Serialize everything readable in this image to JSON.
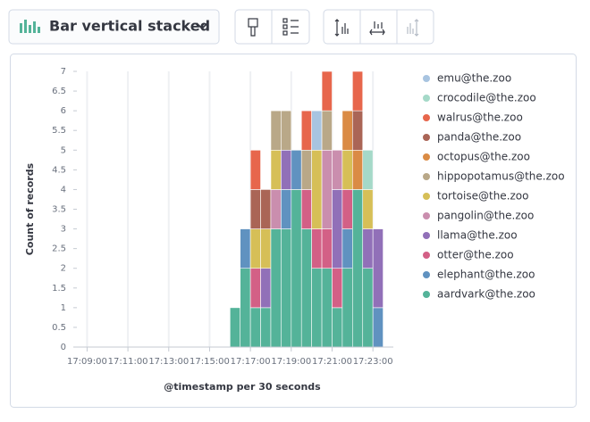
{
  "toolbar": {
    "chart_type": "Bar vertical stacked"
  },
  "chart_data": {
    "type": "bar",
    "stacked": true,
    "x_label": "@timestamp per 30 seconds",
    "y_label": "Count of records",
    "x": [
      "17:16:00",
      "17:16:30",
      "17:17:00",
      "17:17:30",
      "17:18:00",
      "17:18:30",
      "17:19:00",
      "17:19:30",
      "17:20:00",
      "17:20:30",
      "17:21:00",
      "17:21:30",
      "17:22:00",
      "17:22:30",
      "17:23:00"
    ],
    "bin": "00:00:30",
    "xlim": [
      "17:08:30",
      "17:24:00"
    ],
    "xticks": [
      "17:09:00",
      "17:11:00",
      "17:13:00",
      "17:15:00",
      "17:17:00",
      "17:19:00",
      "17:21:00",
      "17:23:00"
    ],
    "ylim": [
      0,
      7
    ],
    "yticks": [
      0,
      0.5,
      1,
      1.5,
      2,
      2.5,
      3,
      3.5,
      4,
      4.5,
      5,
      5.5,
      6,
      6.5,
      7
    ],
    "grid": "x",
    "legend": "right",
    "series": [
      {
        "name": "emu@the.zoo",
        "color": "#a8c4e0",
        "values": [
          0,
          0,
          0,
          0,
          0,
          0,
          0,
          0,
          1,
          0,
          0,
          0,
          0,
          0,
          0
        ]
      },
      {
        "name": "crocodile@the.zoo",
        "color": "#a5d9c8",
        "values": [
          0,
          0,
          0,
          0,
          0,
          0,
          0,
          0,
          0,
          0,
          0,
          0,
          0,
          1,
          0
        ]
      },
      {
        "name": "walrus@the.zoo",
        "color": "#e7664c",
        "values": [
          0,
          0,
          1,
          0,
          0,
          0,
          0,
          1,
          0,
          1,
          0,
          0,
          1,
          0,
          0
        ]
      },
      {
        "name": "panda@the.zoo",
        "color": "#aa6556",
        "values": [
          0,
          0,
          1,
          1,
          0,
          0,
          0,
          0,
          0,
          0,
          0,
          0,
          1,
          0,
          0
        ]
      },
      {
        "name": "octopus@the.zoo",
        "color": "#da8b45",
        "values": [
          0,
          0,
          0,
          0,
          0,
          0,
          0,
          0,
          0,
          0,
          0,
          1,
          1,
          0,
          0
        ]
      },
      {
        "name": "hippopotamus@the.zoo",
        "color": "#b9a888",
        "values": [
          0,
          0,
          0,
          0,
          1,
          1,
          0,
          1,
          0,
          1,
          0,
          0,
          0,
          0,
          0
        ]
      },
      {
        "name": "tortoise@the.zoo",
        "color": "#d6bf57",
        "values": [
          0,
          0,
          1,
          1,
          1,
          0,
          0,
          0,
          2,
          0,
          0,
          1,
          0,
          1,
          0
        ]
      },
      {
        "name": "pangolin@the.zoo",
        "color": "#ca8eae",
        "values": [
          0,
          0,
          0,
          0,
          1,
          0,
          0,
          0,
          0,
          2,
          1,
          0,
          0,
          0,
          0
        ]
      },
      {
        "name": "llama@the.zoo",
        "color": "#9170b8",
        "values": [
          0,
          0,
          0,
          1,
          0,
          1,
          0,
          0,
          0,
          0,
          2,
          0,
          0,
          1,
          2
        ]
      },
      {
        "name": "otter@the.zoo",
        "color": "#d36086",
        "values": [
          0,
          0,
          1,
          0,
          0,
          0,
          0,
          1,
          1,
          1,
          1,
          1,
          0,
          0,
          0
        ]
      },
      {
        "name": "elephant@the.zoo",
        "color": "#6092c0",
        "values": [
          0,
          1,
          0,
          0,
          0,
          1,
          1,
          0,
          0,
          0,
          0,
          1,
          0,
          0,
          1
        ]
      },
      {
        "name": "aardvark@the.zoo",
        "color": "#54b399",
        "values": [
          1,
          2,
          1,
          1,
          3,
          3,
          4,
          3,
          2,
          2,
          1,
          2,
          4,
          2,
          0
        ]
      }
    ]
  }
}
